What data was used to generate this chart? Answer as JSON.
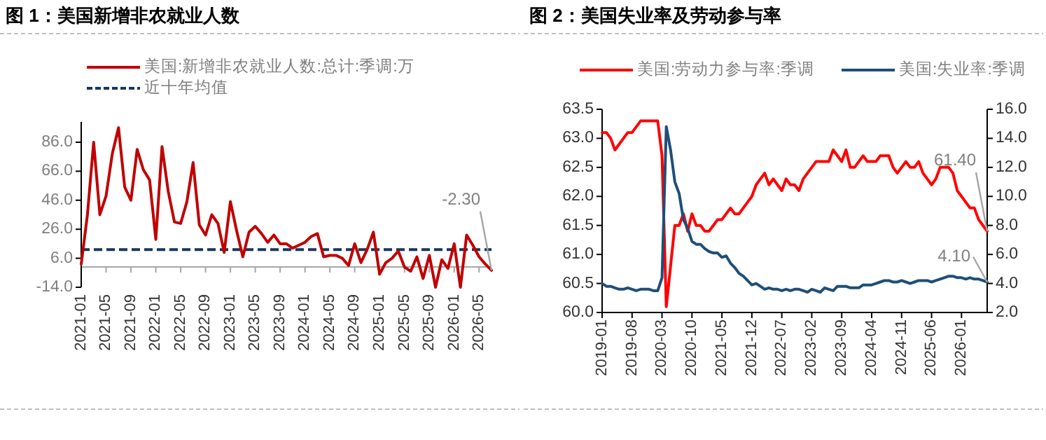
{
  "chart_data": [
    {
      "type": "line",
      "title": "图 1：美国新增非农就业人数",
      "x": [
        "2021-01",
        "2021-02",
        "2021-03",
        "2021-04",
        "2021-05",
        "2021-06",
        "2021-07",
        "2021-08",
        "2021-09",
        "2021-10",
        "2021-11",
        "2021-12",
        "2022-01",
        "2022-02",
        "2022-03",
        "2022-04",
        "2022-05",
        "2022-06",
        "2022-07",
        "2022-08",
        "2022-09",
        "2022-10",
        "2022-11",
        "2022-12",
        "2023-01",
        "2023-02",
        "2023-03",
        "2023-04",
        "2023-05",
        "2023-06",
        "2023-07",
        "2023-08",
        "2023-09",
        "2023-10",
        "2023-11",
        "2023-12",
        "2024-01",
        "2024-02",
        "2024-03",
        "2024-04",
        "2024-05",
        "2024-06",
        "2024-07",
        "2024-08",
        "2024-09",
        "2024-10",
        "2024-11",
        "2024-12",
        "2025-01",
        "2025-02",
        "2025-03",
        "2025-04",
        "2025-05",
        "2025-06",
        "2025-07",
        "2025-08",
        "2025-09",
        "2025-10",
        "2025-11",
        "2025-12",
        "2026-01",
        "2026-02",
        "2026-03",
        "2026-04",
        "2026-05",
        "2026-06",
        "2026-07"
      ],
      "series": [
        {
          "name": "美国:新增非农就业人数:总计:季调:万",
          "color": "#c00000",
          "values": [
            2,
            36,
            86,
            36,
            49,
            78,
            96,
            55,
            46,
            81,
            67,
            60,
            19,
            83,
            52,
            31,
            30,
            45,
            72,
            29,
            22,
            36,
            30,
            10,
            45,
            25,
            7,
            24,
            28,
            23,
            17,
            22,
            16,
            16,
            13,
            15,
            17,
            21,
            23,
            7,
            8,
            8,
            6,
            1,
            16,
            3,
            12,
            24,
            -5,
            3,
            6,
            11,
            0,
            -3,
            7,
            -8,
            8,
            -14,
            5,
            -1,
            16,
            -14,
            22,
            15,
            7,
            2,
            -2.3
          ],
          "value_labels": [
            null,
            null,
            null,
            null,
            null,
            null,
            null,
            null,
            null,
            null,
            null,
            null,
            null,
            null,
            null,
            null,
            null,
            null,
            null,
            null,
            null,
            null,
            null,
            null,
            null,
            null,
            null,
            null,
            null,
            null,
            null,
            null,
            null,
            null,
            null,
            null,
            null,
            null,
            null,
            null,
            null,
            null,
            null,
            null,
            null,
            null,
            null,
            null,
            null,
            null,
            null,
            null,
            null,
            null,
            null,
            null,
            null,
            null,
            null,
            null,
            null,
            null,
            null,
            null,
            null,
            null,
            "-2.30"
          ]
        }
      ],
      "xlim": [
        "2021-01",
        "2026-07"
      ],
      "xticks": [
        "2021-01",
        "2021-05",
        "2021-09",
        "2022-01",
        "2022-05",
        "2022-09",
        "2023-01",
        "2023-05",
        "2023-09",
        "2024-01",
        "2024-05",
        "2024-09",
        "2025-01",
        "2025-05",
        "2025-09",
        "2026-01",
        "2026-05"
      ],
      "ylim": [
        -14,
        100
      ],
      "yticks": [
        {
          "value": -14,
          "label": "-14.0"
        },
        {
          "value": 6,
          "label": "6.0"
        },
        {
          "value": 26,
          "label": "26.0"
        },
        {
          "value": 46,
          "label": "46.0"
        },
        {
          "value": 66,
          "label": "66.0"
        },
        {
          "value": 86,
          "label": "86.0"
        }
      ],
      "ref_lines": [
        {
          "axis": "y",
          "value": 12,
          "label": "近十年均值",
          "color": "#17375e",
          "line_style": "dashed"
        }
      ],
      "legend": "top"
    },
    {
      "type": "line",
      "title": "图 2：美国失业率及劳动参与率",
      "x": [
        "2019-01",
        "2019-02",
        "2019-03",
        "2019-04",
        "2019-05",
        "2019-06",
        "2019-07",
        "2019-08",
        "2019-09",
        "2019-10",
        "2019-11",
        "2019-12",
        "2020-01",
        "2020-02",
        "2020-03",
        "2020-04",
        "2020-05",
        "2020-06",
        "2020-07",
        "2020-08",
        "2020-09",
        "2020-10",
        "2020-11",
        "2020-12",
        "2021-01",
        "2021-02",
        "2021-03",
        "2021-04",
        "2021-05",
        "2021-06",
        "2021-07",
        "2021-08",
        "2021-09",
        "2021-10",
        "2021-11",
        "2021-12",
        "2022-01",
        "2022-02",
        "2022-03",
        "2022-04",
        "2022-05",
        "2022-06",
        "2022-07",
        "2022-08",
        "2022-09",
        "2022-10",
        "2022-11",
        "2022-12",
        "2023-01",
        "2023-02",
        "2023-03",
        "2023-04",
        "2023-05",
        "2023-06",
        "2023-07",
        "2023-08",
        "2023-09",
        "2023-10",
        "2023-11",
        "2023-12",
        "2024-01",
        "2024-02",
        "2024-03",
        "2024-04",
        "2024-05",
        "2024-06",
        "2024-07",
        "2024-08",
        "2024-09",
        "2024-10",
        "2024-11",
        "2024-12",
        "2025-01",
        "2025-02",
        "2025-03",
        "2025-04",
        "2025-05",
        "2025-06",
        "2025-07",
        "2025-08",
        "2025-09",
        "2025-10",
        "2025-11",
        "2025-12",
        "2026-01",
        "2026-02",
        "2026-03",
        "2026-04",
        "2026-05",
        "2026-06",
        "2026-07"
      ],
      "series": [
        {
          "name": "美国:劳动力参与率:季调",
          "color": "#ff0000",
          "values": [
            63.1,
            63.1,
            63.0,
            62.8,
            62.9,
            63.0,
            63.1,
            63.1,
            63.2,
            63.3,
            63.3,
            63.3,
            63.3,
            63.3,
            62.7,
            60.1,
            60.8,
            61.5,
            61.5,
            61.7,
            61.4,
            61.7,
            61.5,
            61.5,
            61.4,
            61.4,
            61.5,
            61.6,
            61.6,
            61.7,
            61.8,
            61.7,
            61.7,
            61.8,
            61.9,
            62.0,
            62.2,
            62.3,
            62.4,
            62.2,
            62.3,
            62.2,
            62.1,
            62.3,
            62.2,
            62.2,
            62.1,
            62.3,
            62.4,
            62.5,
            62.6,
            62.6,
            62.6,
            62.6,
            62.8,
            62.7,
            62.6,
            62.8,
            62.5,
            62.5,
            62.6,
            62.7,
            62.6,
            62.6,
            62.6,
            62.7,
            62.7,
            62.7,
            62.5,
            62.4,
            62.5,
            62.6,
            62.5,
            62.5,
            62.6,
            62.4,
            62.3,
            62.2,
            62.3,
            62.5,
            62.5,
            62.5,
            62.4,
            62.1,
            62.0,
            61.9,
            61.8,
            61.8,
            61.6,
            61.5,
            61.4
          ],
          "value_labels": [
            null,
            null,
            null,
            null,
            null,
            null,
            null,
            null,
            null,
            null,
            null,
            null,
            null,
            null,
            null,
            null,
            null,
            null,
            null,
            null,
            null,
            null,
            null,
            null,
            null,
            null,
            null,
            null,
            null,
            null,
            null,
            null,
            null,
            null,
            null,
            null,
            null,
            null,
            null,
            null,
            null,
            null,
            null,
            null,
            null,
            null,
            null,
            null,
            null,
            null,
            null,
            null,
            null,
            null,
            null,
            null,
            null,
            null,
            null,
            null,
            null,
            null,
            null,
            null,
            null,
            null,
            null,
            null,
            null,
            null,
            null,
            null,
            null,
            null,
            null,
            null,
            null,
            null,
            null,
            null,
            null,
            null,
            null,
            null,
            null,
            null,
            null,
            null,
            null,
            null,
            "61.40"
          ]
        },
        {
          "name": "美国:失业率:季调",
          "color": "#1f4e79",
          "axis": "y2",
          "values": [
            4.0,
            3.8,
            3.8,
            3.7,
            3.6,
            3.6,
            3.7,
            3.6,
            3.5,
            3.6,
            3.6,
            3.6,
            3.5,
            3.5,
            4.4,
            14.8,
            13.2,
            11.0,
            10.2,
            8.4,
            7.8,
            6.9,
            6.7,
            6.7,
            6.4,
            6.2,
            6.1,
            6.1,
            5.8,
            5.9,
            5.4,
            5.1,
            4.7,
            4.5,
            4.2,
            3.9,
            4.0,
            3.8,
            3.6,
            3.7,
            3.6,
            3.6,
            3.5,
            3.6,
            3.5,
            3.6,
            3.6,
            3.5,
            3.4,
            3.6,
            3.5,
            3.4,
            3.7,
            3.6,
            3.5,
            3.8,
            3.8,
            3.8,
            3.7,
            3.7,
            3.7,
            3.9,
            3.9,
            3.9,
            4.0,
            4.1,
            4.2,
            4.2,
            4.1,
            4.1,
            4.2,
            4.1,
            4.0,
            4.1,
            4.2,
            4.2,
            4.2,
            4.1,
            4.2,
            4.3,
            4.4,
            4.5,
            4.5,
            4.4,
            4.4,
            4.3,
            4.4,
            4.3,
            4.3,
            4.2,
            4.1
          ],
          "value_labels": [
            null,
            null,
            null,
            null,
            null,
            null,
            null,
            null,
            null,
            null,
            null,
            null,
            null,
            null,
            null,
            null,
            null,
            null,
            null,
            null,
            null,
            null,
            null,
            null,
            null,
            null,
            null,
            null,
            null,
            null,
            null,
            null,
            null,
            null,
            null,
            null,
            null,
            null,
            null,
            null,
            null,
            null,
            null,
            null,
            null,
            null,
            null,
            null,
            null,
            null,
            null,
            null,
            null,
            null,
            null,
            null,
            null,
            null,
            null,
            null,
            null,
            null,
            null,
            null,
            null,
            null,
            null,
            null,
            null,
            null,
            null,
            null,
            null,
            null,
            null,
            null,
            null,
            null,
            null,
            null,
            null,
            null,
            null,
            null,
            null,
            null,
            null,
            null,
            null,
            null,
            "4.10"
          ]
        }
      ],
      "xlim": [
        "2019-01",
        "2026-07"
      ],
      "xticks": [
        "2019-01",
        "2019-08",
        "2020-03",
        "2020-10",
        "2021-05",
        "2021-12",
        "2022-07",
        "2023-02",
        "2023-09",
        "2024-04",
        "2024-11",
        "2025-06",
        "2026-01"
      ],
      "ylim": [
        60,
        63.5
      ],
      "yticks": [
        {
          "value": 60,
          "label": "60.0"
        },
        60.5,
        {
          "value": 61,
          "label": "61.0"
        },
        61.5,
        {
          "value": 62,
          "label": "62.0"
        },
        62.5,
        {
          "value": 63,
          "label": "63.0"
        },
        63.5
      ],
      "y2lim": [
        2,
        16
      ],
      "y2ticks": [
        {
          "value": 2,
          "label": "2.0"
        },
        {
          "value": 4,
          "label": "4.0"
        },
        {
          "value": 6,
          "label": "6.0"
        },
        {
          "value": 8,
          "label": "8.0"
        },
        {
          "value": 10,
          "label": "10.0"
        },
        {
          "value": 12,
          "label": "12.0"
        },
        {
          "value": 14,
          "label": "14.0"
        },
        {
          "value": 16,
          "label": "16.0"
        }
      ],
      "legend": "top"
    }
  ]
}
